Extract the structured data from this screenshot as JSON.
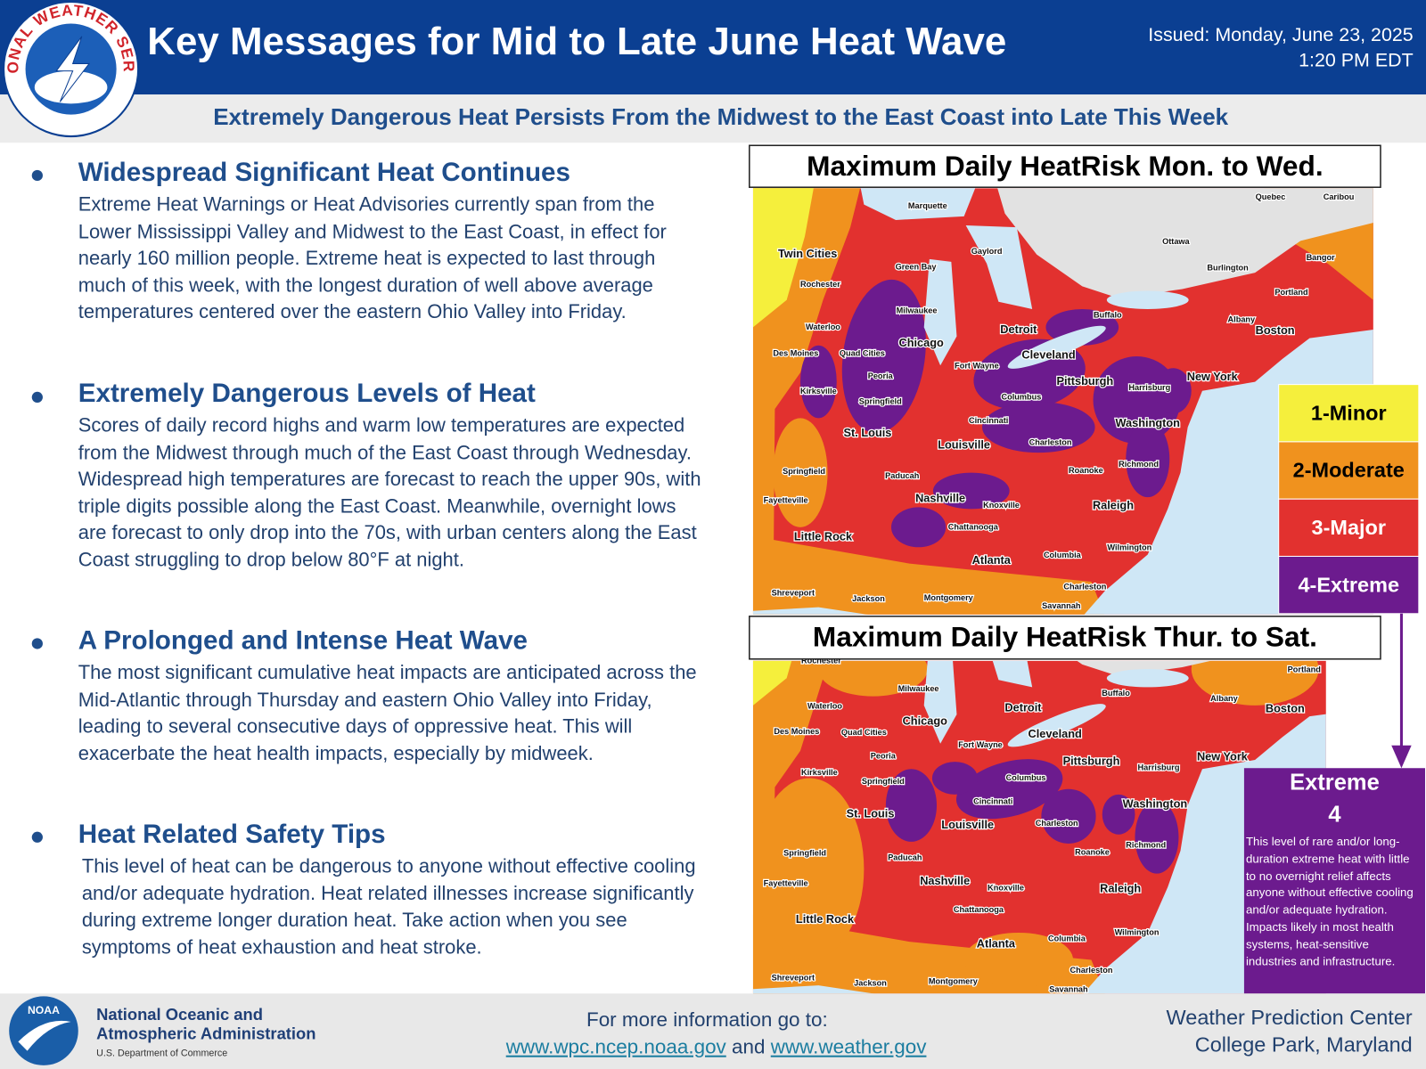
{
  "header": {
    "title": "Key Messages for Mid to Late June Heat Wave",
    "issued_line1": "Issued: Monday, June 23, 2025",
    "issued_line2": "1:20 PM EDT",
    "logo_text": "NATIONAL WEATHER SERVICE"
  },
  "subtitle": "Extremely Dangerous Heat Persists From the Midwest to the East Coast into Late This Week",
  "sections": [
    {
      "heading": "Widespread Significant Heat Continues",
      "body": "Extreme Heat Warnings or Heat Advisories currently span from the Lower Mississippi Valley and Midwest to the East Coast, in effect for nearly 160 million people. Extreme heat is expected to last through much of this week, with the longest duration of well above average temperatures centered over the eastern Ohio Valley into Friday."
    },
    {
      "heading": "Extremely Dangerous Levels of Heat",
      "body": "Scores of daily record highs and warm low temperatures are expected from the Midwest through much of the East Coast through Wednesday. Widespread high temperatures are forecast to reach the upper 90s, with triple digits possible along the East Coast. Meanwhile, overnight lows are forecast to only drop into the 70s, with urban centers along the East Coast struggling to drop below 80°F at night."
    },
    {
      "heading": "A Prolonged and Intense Heat Wave",
      "body": "The most significant cumulative heat impacts are anticipated across the Mid-Atlantic through Thursday and eastern Ohio Valley into Friday, leading to several consecutive days of oppressive heat. This will exacerbate the heat health impacts, especially by midweek."
    },
    {
      "heading": "Heat Related Safety Tips",
      "body": "This level of heat can be dangerous to anyone without effective cooling and/or adequate hydration. Heat related illnesses increase significantly during extreme longer duration heat. Take action when you see symptoms of heat exhaustion and heat stroke."
    }
  ],
  "maps": [
    {
      "title": "Maximum Daily HeatRisk Mon. to Wed.",
      "cities": [
        "Marquette",
        "Quebec",
        "Caribou",
        "Twin Cities",
        "Gaylord",
        "Ottawa",
        "Green Bay",
        "Burlington",
        "Bangor",
        "Rochester",
        "Portland",
        "Milwaukee",
        "Buffalo",
        "Albany",
        "Waterloo",
        "Detroit",
        "Boston",
        "Chicago",
        "Des Moines",
        "Quad Cities",
        "Cleveland",
        "Fort Wayne",
        "Peoria",
        "Pittsburgh",
        "New York",
        "Harrisburg",
        "Kirksville",
        "Columbus",
        "Springfield",
        "Cincinnati",
        "Washington",
        "St. Louis",
        "Louisville",
        "Charleston",
        "Springfield",
        "Richmond",
        "Paducah",
        "Roanoke",
        "Fayetteville",
        "Nashville",
        "Knoxville",
        "Raleigh",
        "Chattanooga",
        "Little Rock",
        "Wilmington",
        "Columbia",
        "Atlanta",
        "Charleston",
        "Shreveport",
        "Jackson",
        "Montgomery",
        "Savannah"
      ]
    },
    {
      "title": "Maximum Daily HeatRisk Thur. to Sat.",
      "cities": [
        "Rochester",
        "Portland",
        "Milwaukee",
        "Buffalo",
        "Albany",
        "Waterloo",
        "Detroit",
        "Boston",
        "Chicago",
        "Des Moines",
        "Quad Cities",
        "Cleveland",
        "Fort Wayne",
        "Peoria",
        "Pittsburgh",
        "New York",
        "Harrisburg",
        "Kirksville",
        "Columbus",
        "Springfield",
        "Cincinnati",
        "Washington",
        "St. Louis",
        "Louisville",
        "Charleston",
        "Springfield",
        "Richmond",
        "Paducah",
        "Roanoke",
        "Fayetteville",
        "Nashville",
        "Knoxville",
        "Raleigh",
        "Chattanooga",
        "Little Rock",
        "Wilmington",
        "Columbia",
        "Atlanta",
        "Charleston",
        "Shreveport",
        "Jackson",
        "Montgomery",
        "Savannah"
      ]
    }
  ],
  "legend": [
    {
      "label": "1-Minor",
      "color": "#f5ef3c"
    },
    {
      "label": "2-Moderate",
      "color": "#f0921e"
    },
    {
      "label": "3-Major",
      "color": "#e2312f"
    },
    {
      "label": "4-Extreme",
      "color": "#6c1b8e"
    }
  ],
  "extreme_box": {
    "title": "Extreme",
    "level": 4,
    "description": "This level of rare and/or long-duration extreme heat with little to no overnight relief affects anyone without effective cooling and/or adequate hydration. Impacts likely in most health systems, heat-sensitive industries and infrastructure."
  },
  "footer": {
    "noaa_logo": "NOAA",
    "agency_line1": "National Oceanic and",
    "agency_line2": "Atmospheric Administration",
    "department": "U.S. Department of Commerce",
    "info_prompt": "For more information go to:",
    "link1": "www.wpc.ncep.noaa.gov",
    "joiner": "and",
    "link2": "www.weather.gov",
    "center_line1": "Weather Prediction Center",
    "center_line2": "College Park, Maryland"
  }
}
